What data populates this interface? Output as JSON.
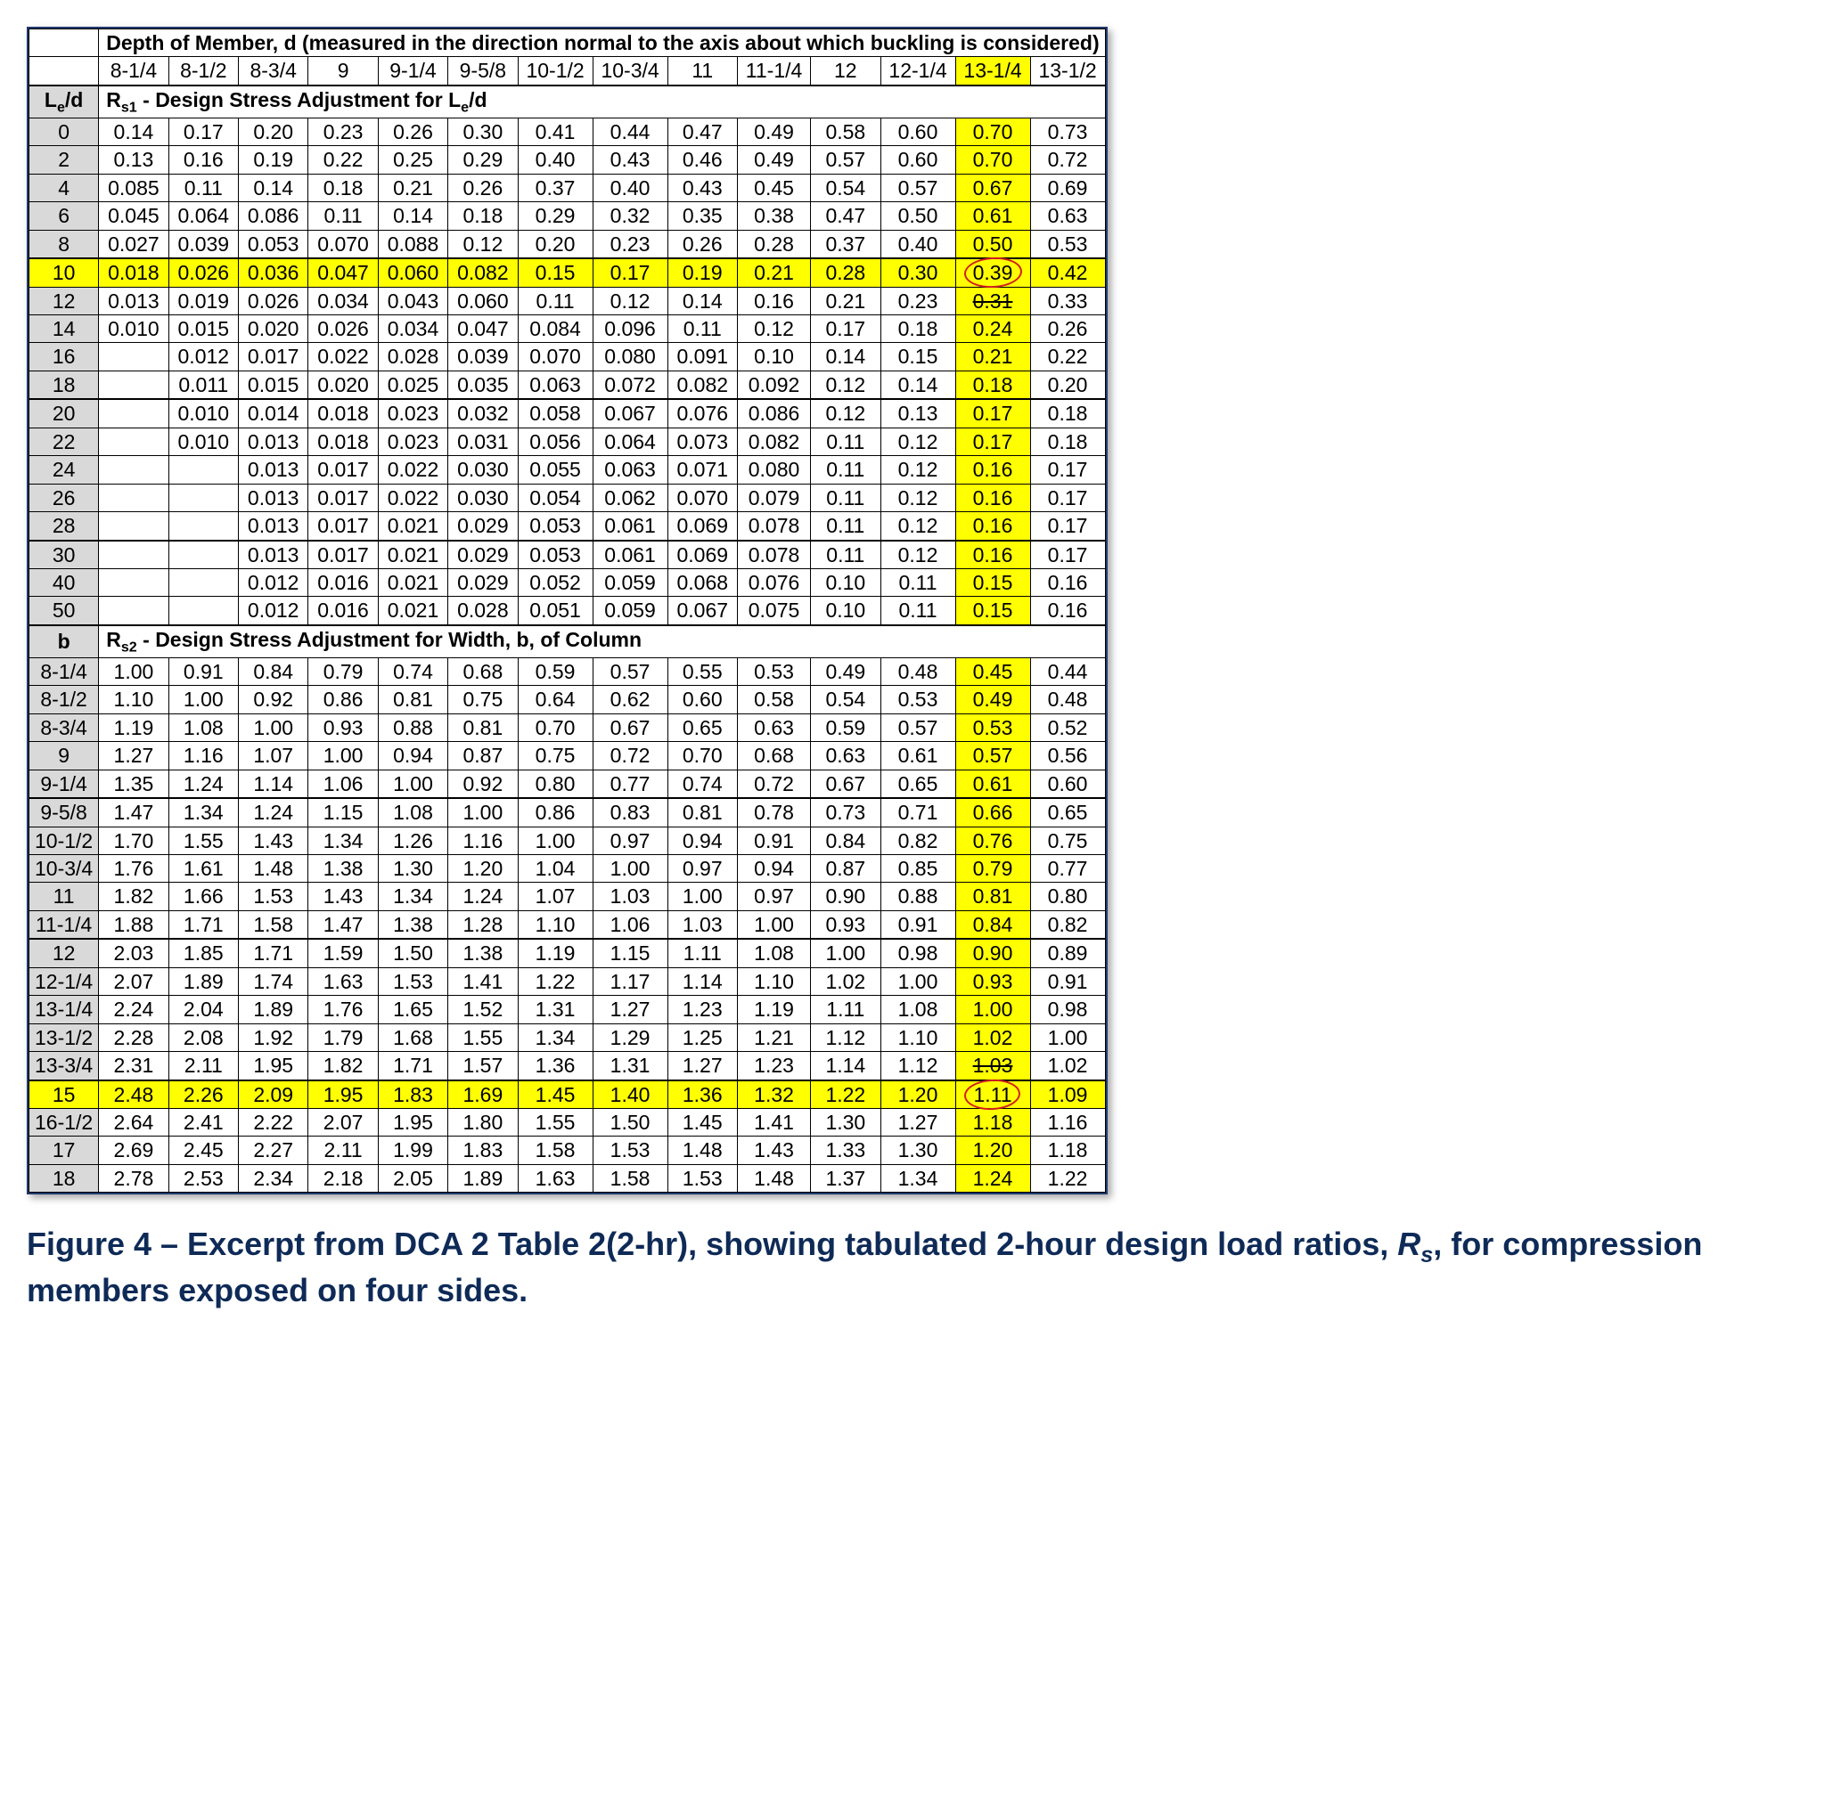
{
  "header": {
    "title_html": "Depth of Member, d (measured in the direction normal to the axis about which buckling is considered)",
    "columns": [
      "8-1/4",
      "8-1/2",
      "8-3/4",
      "9",
      "9-1/4",
      "9-5/8",
      "10-1/2",
      "10-3/4",
      "11",
      "11-1/4",
      "12",
      "12-1/4",
      "13-1/4",
      "13-1/2"
    ],
    "hl_col_index": 12
  },
  "section1": {
    "left_label_html": "L<sub>e</sub>/d",
    "label_html": "R<sub>s1</sub> - Design Stress Adjustment for L<sub>e</sub>/d",
    "hl_row_index": 5,
    "circle": {
      "row": 5,
      "col": 12
    },
    "strike": {
      "row": 6,
      "col": 12
    },
    "groups": [
      [
        0,
        4
      ],
      [
        5,
        9
      ],
      [
        10,
        14
      ],
      [
        15,
        17
      ]
    ],
    "rows": [
      {
        "k": "0",
        "v": [
          "0.14",
          "0.17",
          "0.20",
          "0.23",
          "0.26",
          "0.30",
          "0.41",
          "0.44",
          "0.47",
          "0.49",
          "0.58",
          "0.60",
          "0.70",
          "0.73"
        ]
      },
      {
        "k": "2",
        "v": [
          "0.13",
          "0.16",
          "0.19",
          "0.22",
          "0.25",
          "0.29",
          "0.40",
          "0.43",
          "0.46",
          "0.49",
          "0.57",
          "0.60",
          "0.70",
          "0.72"
        ]
      },
      {
        "k": "4",
        "v": [
          "0.085",
          "0.11",
          "0.14",
          "0.18",
          "0.21",
          "0.26",
          "0.37",
          "0.40",
          "0.43",
          "0.45",
          "0.54",
          "0.57",
          "0.67",
          "0.69"
        ]
      },
      {
        "k": "6",
        "v": [
          "0.045",
          "0.064",
          "0.086",
          "0.11",
          "0.14",
          "0.18",
          "0.29",
          "0.32",
          "0.35",
          "0.38",
          "0.47",
          "0.50",
          "0.61",
          "0.63"
        ]
      },
      {
        "k": "8",
        "v": [
          "0.027",
          "0.039",
          "0.053",
          "0.070",
          "0.088",
          "0.12",
          "0.20",
          "0.23",
          "0.26",
          "0.28",
          "0.37",
          "0.40",
          "0.50",
          "0.53"
        ]
      },
      {
        "k": "10",
        "v": [
          "0.018",
          "0.026",
          "0.036",
          "0.047",
          "0.060",
          "0.082",
          "0.15",
          "0.17",
          "0.19",
          "0.21",
          "0.28",
          "0.30",
          "0.39",
          "0.42"
        ]
      },
      {
        "k": "12",
        "v": [
          "0.013",
          "0.019",
          "0.026",
          "0.034",
          "0.043",
          "0.060",
          "0.11",
          "0.12",
          "0.14",
          "0.16",
          "0.21",
          "0.23",
          "0.31",
          "0.33"
        ]
      },
      {
        "k": "14",
        "v": [
          "0.010",
          "0.015",
          "0.020",
          "0.026",
          "0.034",
          "0.047",
          "0.084",
          "0.096",
          "0.11",
          "0.12",
          "0.17",
          "0.18",
          "0.24",
          "0.26"
        ]
      },
      {
        "k": "16",
        "v": [
          "",
          "0.012",
          "0.017",
          "0.022",
          "0.028",
          "0.039",
          "0.070",
          "0.080",
          "0.091",
          "0.10",
          "0.14",
          "0.15",
          "0.21",
          "0.22"
        ]
      },
      {
        "k": "18",
        "v": [
          "",
          "0.011",
          "0.015",
          "0.020",
          "0.025",
          "0.035",
          "0.063",
          "0.072",
          "0.082",
          "0.092",
          "0.12",
          "0.14",
          "0.18",
          "0.20"
        ]
      },
      {
        "k": "20",
        "v": [
          "",
          "0.010",
          "0.014",
          "0.018",
          "0.023",
          "0.032",
          "0.058",
          "0.067",
          "0.076",
          "0.086",
          "0.12",
          "0.13",
          "0.17",
          "0.18"
        ]
      },
      {
        "k": "22",
        "v": [
          "",
          "0.010",
          "0.013",
          "0.018",
          "0.023",
          "0.031",
          "0.056",
          "0.064",
          "0.073",
          "0.082",
          "0.11",
          "0.12",
          "0.17",
          "0.18"
        ]
      },
      {
        "k": "24",
        "v": [
          "",
          "",
          "0.013",
          "0.017",
          "0.022",
          "0.030",
          "0.055",
          "0.063",
          "0.071",
          "0.080",
          "0.11",
          "0.12",
          "0.16",
          "0.17"
        ]
      },
      {
        "k": "26",
        "v": [
          "",
          "",
          "0.013",
          "0.017",
          "0.022",
          "0.030",
          "0.054",
          "0.062",
          "0.070",
          "0.079",
          "0.11",
          "0.12",
          "0.16",
          "0.17"
        ]
      },
      {
        "k": "28",
        "v": [
          "",
          "",
          "0.013",
          "0.017",
          "0.021",
          "0.029",
          "0.053",
          "0.061",
          "0.069",
          "0.078",
          "0.11",
          "0.12",
          "0.16",
          "0.17"
        ]
      },
      {
        "k": "30",
        "v": [
          "",
          "",
          "0.013",
          "0.017",
          "0.021",
          "0.029",
          "0.053",
          "0.061",
          "0.069",
          "0.078",
          "0.11",
          "0.12",
          "0.16",
          "0.17"
        ]
      },
      {
        "k": "40",
        "v": [
          "",
          "",
          "0.012",
          "0.016",
          "0.021",
          "0.029",
          "0.052",
          "0.059",
          "0.068",
          "0.076",
          "0.10",
          "0.11",
          "0.15",
          "0.16"
        ]
      },
      {
        "k": "50",
        "v": [
          "",
          "",
          "0.012",
          "0.016",
          "0.021",
          "0.028",
          "0.051",
          "0.059",
          "0.067",
          "0.075",
          "0.10",
          "0.11",
          "0.15",
          "0.16"
        ]
      }
    ]
  },
  "section2": {
    "left_label_html": "b",
    "label_html": "R<sub>s2</sub> - Design Stress Adjustment for Width, b, of Column",
    "hl_row_index": 15,
    "circle": {
      "row": 15,
      "col": 12
    },
    "strike": {
      "row": 14,
      "col": 12
    },
    "groups": [
      [
        0,
        4
      ],
      [
        5,
        9
      ],
      [
        10,
        14
      ],
      [
        15,
        18
      ]
    ],
    "rows": [
      {
        "k": "8-1/4",
        "v": [
          "1.00",
          "0.91",
          "0.84",
          "0.79",
          "0.74",
          "0.68",
          "0.59",
          "0.57",
          "0.55",
          "0.53",
          "0.49",
          "0.48",
          "0.45",
          "0.44"
        ]
      },
      {
        "k": "8-1/2",
        "v": [
          "1.10",
          "1.00",
          "0.92",
          "0.86",
          "0.81",
          "0.75",
          "0.64",
          "0.62",
          "0.60",
          "0.58",
          "0.54",
          "0.53",
          "0.49",
          "0.48"
        ]
      },
      {
        "k": "8-3/4",
        "v": [
          "1.19",
          "1.08",
          "1.00",
          "0.93",
          "0.88",
          "0.81",
          "0.70",
          "0.67",
          "0.65",
          "0.63",
          "0.59",
          "0.57",
          "0.53",
          "0.52"
        ]
      },
      {
        "k": "9",
        "v": [
          "1.27",
          "1.16",
          "1.07",
          "1.00",
          "0.94",
          "0.87",
          "0.75",
          "0.72",
          "0.70",
          "0.68",
          "0.63",
          "0.61",
          "0.57",
          "0.56"
        ]
      },
      {
        "k": "9-1/4",
        "v": [
          "1.35",
          "1.24",
          "1.14",
          "1.06",
          "1.00",
          "0.92",
          "0.80",
          "0.77",
          "0.74",
          "0.72",
          "0.67",
          "0.65",
          "0.61",
          "0.60"
        ]
      },
      {
        "k": "9-5/8",
        "v": [
          "1.47",
          "1.34",
          "1.24",
          "1.15",
          "1.08",
          "1.00",
          "0.86",
          "0.83",
          "0.81",
          "0.78",
          "0.73",
          "0.71",
          "0.66",
          "0.65"
        ]
      },
      {
        "k": "10-1/2",
        "v": [
          "1.70",
          "1.55",
          "1.43",
          "1.34",
          "1.26",
          "1.16",
          "1.00",
          "0.97",
          "0.94",
          "0.91",
          "0.84",
          "0.82",
          "0.76",
          "0.75"
        ]
      },
      {
        "k": "10-3/4",
        "v": [
          "1.76",
          "1.61",
          "1.48",
          "1.38",
          "1.30",
          "1.20",
          "1.04",
          "1.00",
          "0.97",
          "0.94",
          "0.87",
          "0.85",
          "0.79",
          "0.77"
        ]
      },
      {
        "k": "11",
        "v": [
          "1.82",
          "1.66",
          "1.53",
          "1.43",
          "1.34",
          "1.24",
          "1.07",
          "1.03",
          "1.00",
          "0.97",
          "0.90",
          "0.88",
          "0.81",
          "0.80"
        ]
      },
      {
        "k": "11-1/4",
        "v": [
          "1.88",
          "1.71",
          "1.58",
          "1.47",
          "1.38",
          "1.28",
          "1.10",
          "1.06",
          "1.03",
          "1.00",
          "0.93",
          "0.91",
          "0.84",
          "0.82"
        ]
      },
      {
        "k": "12",
        "v": [
          "2.03",
          "1.85",
          "1.71",
          "1.59",
          "1.50",
          "1.38",
          "1.19",
          "1.15",
          "1.11",
          "1.08",
          "1.00",
          "0.98",
          "0.90",
          "0.89"
        ]
      },
      {
        "k": "12-1/4",
        "v": [
          "2.07",
          "1.89",
          "1.74",
          "1.63",
          "1.53",
          "1.41",
          "1.22",
          "1.17",
          "1.14",
          "1.10",
          "1.02",
          "1.00",
          "0.93",
          "0.91"
        ]
      },
      {
        "k": "13-1/4",
        "v": [
          "2.24",
          "2.04",
          "1.89",
          "1.76",
          "1.65",
          "1.52",
          "1.31",
          "1.27",
          "1.23",
          "1.19",
          "1.11",
          "1.08",
          "1.00",
          "0.98"
        ]
      },
      {
        "k": "13-1/2",
        "v": [
          "2.28",
          "2.08",
          "1.92",
          "1.79",
          "1.68",
          "1.55",
          "1.34",
          "1.29",
          "1.25",
          "1.21",
          "1.12",
          "1.10",
          "1.02",
          "1.00"
        ]
      },
      {
        "k": "13-3/4",
        "v": [
          "2.31",
          "2.11",
          "1.95",
          "1.82",
          "1.71",
          "1.57",
          "1.36",
          "1.31",
          "1.27",
          "1.23",
          "1.14",
          "1.12",
          "1.03",
          "1.02"
        ]
      },
      {
        "k": "15",
        "v": [
          "2.48",
          "2.26",
          "2.09",
          "1.95",
          "1.83",
          "1.69",
          "1.45",
          "1.40",
          "1.36",
          "1.32",
          "1.22",
          "1.20",
          "1.11",
          "1.09"
        ]
      },
      {
        "k": "16-1/2",
        "v": [
          "2.64",
          "2.41",
          "2.22",
          "2.07",
          "1.95",
          "1.80",
          "1.55",
          "1.50",
          "1.45",
          "1.41",
          "1.30",
          "1.27",
          "1.18",
          "1.16"
        ]
      },
      {
        "k": "17",
        "v": [
          "2.69",
          "2.45",
          "2.27",
          "2.11",
          "1.99",
          "1.83",
          "1.58",
          "1.53",
          "1.48",
          "1.43",
          "1.33",
          "1.30",
          "1.20",
          "1.18"
        ]
      },
      {
        "k": "18",
        "v": [
          "2.78",
          "2.53",
          "2.34",
          "2.18",
          "2.05",
          "1.89",
          "1.63",
          "1.58",
          "1.53",
          "1.48",
          "1.37",
          "1.34",
          "1.24",
          "1.22"
        ]
      }
    ]
  },
  "caption_html": "Figure 4 &ndash; Excerpt from DCA 2 Table 2(2-hr), showing tabulated 2-hour design load ratios, <span class='rs'>R<sub>s</sub></span>, for compression members exposed on four sides."
}
